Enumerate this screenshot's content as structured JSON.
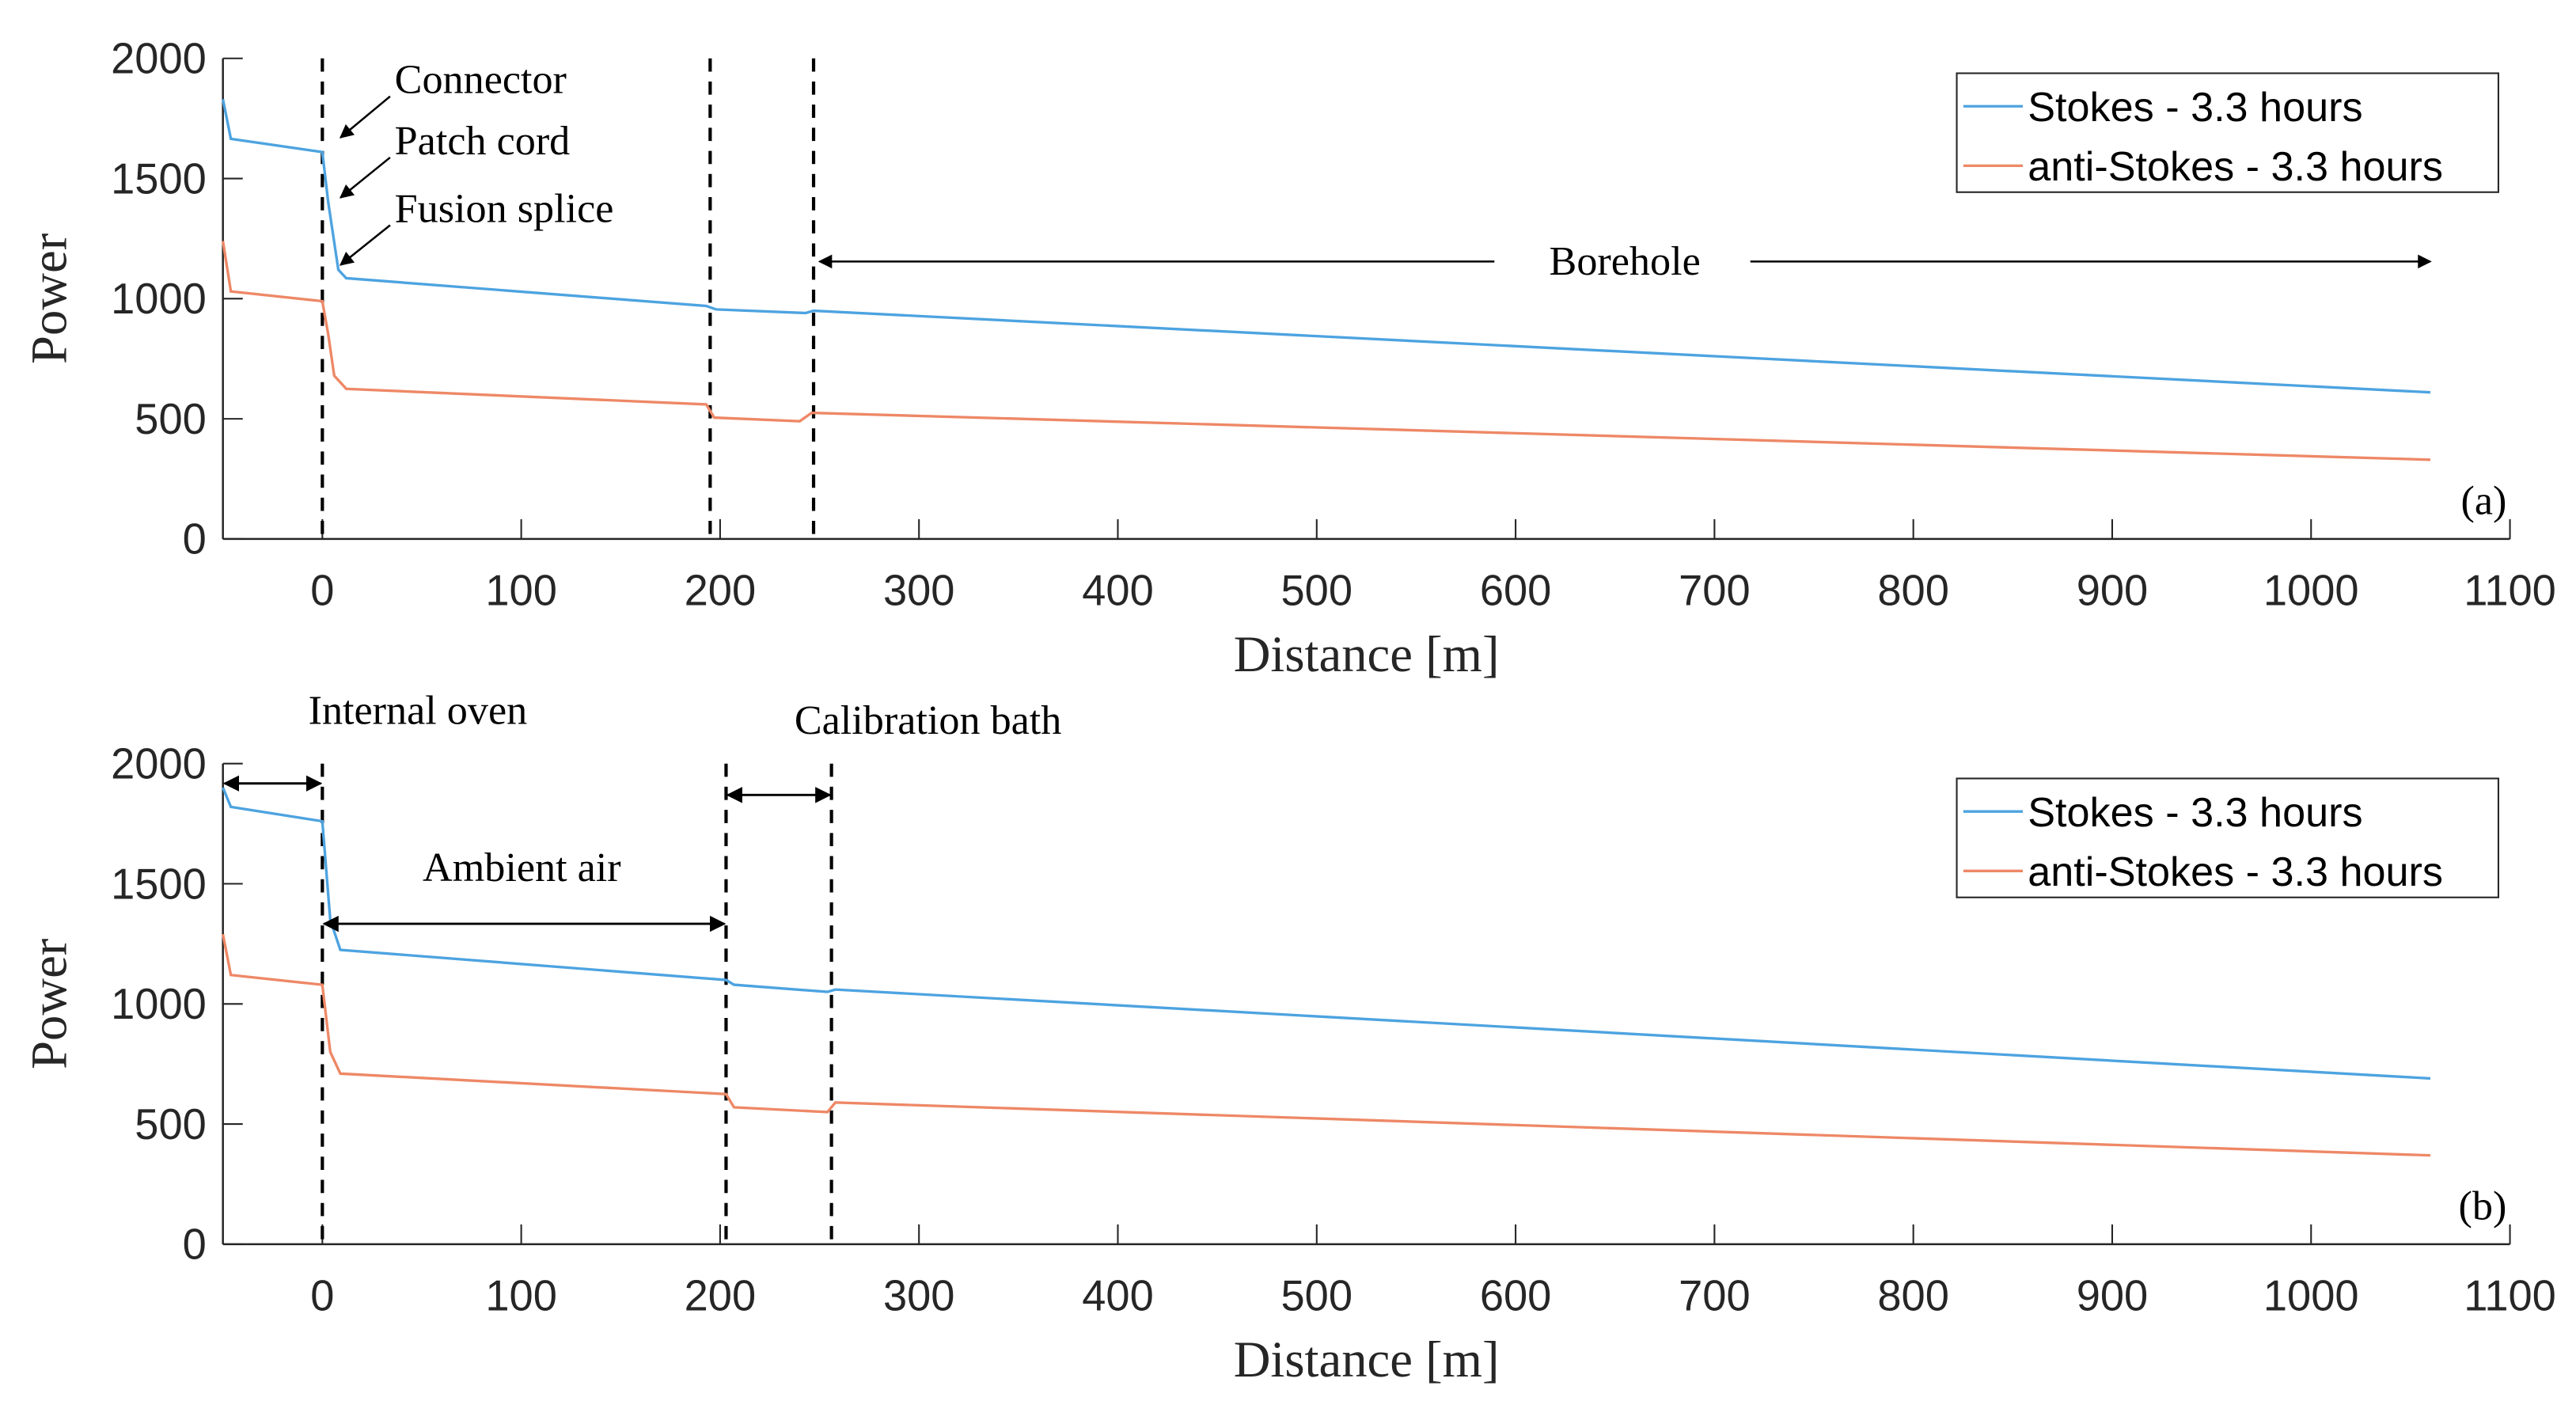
{
  "chart_data": [
    {
      "type": "line",
      "panel_label": "(a)",
      "xlabel": "Distance [m]",
      "ylabel": "Power",
      "xlim": [
        -50,
        1100
      ],
      "ylim": [
        0,
        2000
      ],
      "xticks": [
        0,
        100,
        200,
        300,
        400,
        500,
        600,
        700,
        800,
        900,
        1000,
        1100
      ],
      "yticks": [
        0,
        500,
        1000,
        1500,
        2000
      ],
      "grid": false,
      "legend": "top-right",
      "series": [
        {
          "name": "Stokes - 3.3 hours",
          "color": "#4DA3E0",
          "x": [
            -50,
            -46,
            0,
            3,
            8,
            12,
            193,
            198,
            243,
            247,
            1060
          ],
          "y": [
            1830,
            1665,
            1610,
            1400,
            1120,
            1085,
            970,
            955,
            940,
            950,
            610
          ]
        },
        {
          "name": "anti-Stokes - 3.3 hours",
          "color": "#EE8866",
          "x": [
            -50,
            -46,
            0,
            3,
            6,
            12,
            193,
            197,
            240,
            246,
            1060
          ],
          "y": [
            1240,
            1030,
            990,
            850,
            680,
            625,
            560,
            505,
            490,
            525,
            330
          ]
        }
      ],
      "vlines": [
        0,
        195,
        247
      ],
      "annotations": [
        {
          "text": "Connector",
          "points_to": [
            5,
            1650
          ]
        },
        {
          "text": "Patch cord",
          "points_to": [
            5,
            1400
          ]
        },
        {
          "text": "Fusion splice",
          "points_to": [
            5,
            1120
          ]
        },
        {
          "text": "Borehole",
          "span": [
            250,
            1060
          ]
        }
      ]
    },
    {
      "type": "line",
      "panel_label": "(b)",
      "xlabel": "Distance [m]",
      "ylabel": "Power",
      "xlim": [
        -50,
        1100
      ],
      "ylim": [
        0,
        2000
      ],
      "xticks": [
        0,
        100,
        200,
        300,
        400,
        500,
        600,
        700,
        800,
        900,
        1000,
        1100
      ],
      "yticks": [
        0,
        500,
        1000,
        1500,
        2000
      ],
      "grid": false,
      "legend": "top-right",
      "series": [
        {
          "name": "Stokes - 3.3 hours",
          "color": "#4DA3E0",
          "x": [
            -50,
            -46,
            0,
            4,
            9,
            203,
            207,
            254,
            258,
            1060
          ],
          "y": [
            1900,
            1820,
            1760,
            1350,
            1225,
            1100,
            1080,
            1050,
            1060,
            690
          ]
        },
        {
          "name": "anti-Stokes - 3.3 hours",
          "color": "#EE8866",
          "x": [
            -50,
            -46,
            0,
            4,
            9,
            203,
            207,
            254,
            258,
            1060
          ],
          "y": [
            1290,
            1120,
            1080,
            800,
            710,
            625,
            570,
            550,
            590,
            370
          ]
        }
      ],
      "vlines": [
        0,
        203,
        256
      ],
      "annotations": [
        {
          "text": "Internal oven",
          "span": [
            -50,
            0
          ]
        },
        {
          "text": "Ambient air",
          "span": [
            0,
            203
          ]
        },
        {
          "text": "Calibration bath",
          "span": [
            203,
            256
          ]
        }
      ]
    }
  ]
}
